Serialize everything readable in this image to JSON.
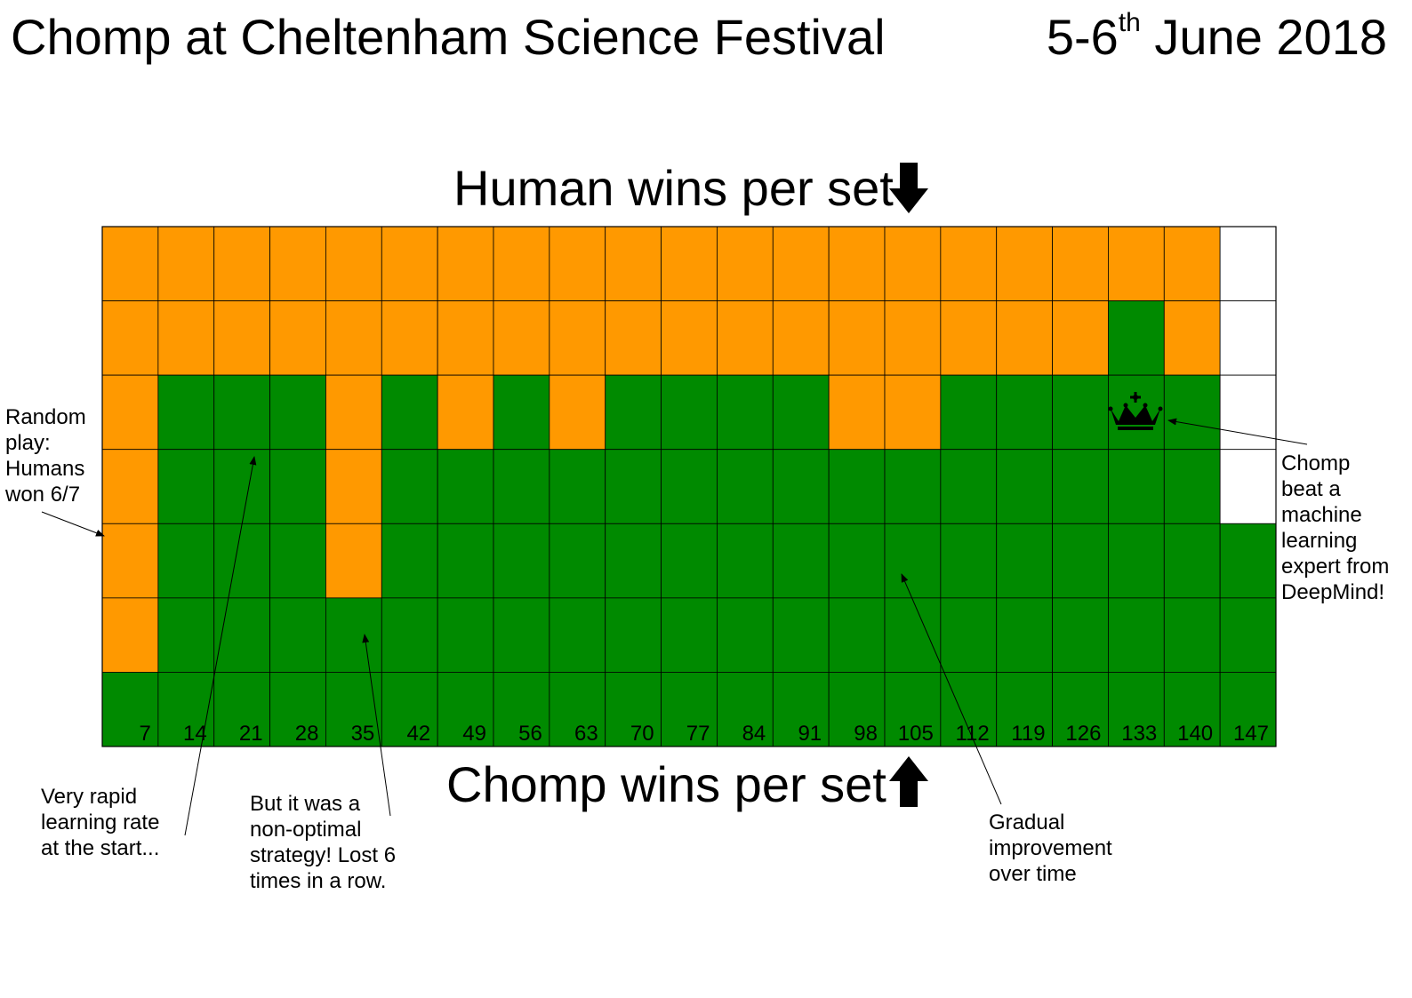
{
  "header": {
    "title": "Chomp at Cheltenham Science Festival",
    "date_prefix": "5-6",
    "date_sup": "th",
    "date_suffix": " June 2018"
  },
  "chart_data": {
    "type": "heatmap",
    "title": "Chomp at Cheltenham Science Festival",
    "top_label": "Human wins per set",
    "bottom_label": "Chomp wins per set",
    "games_per_set": 7,
    "categories": [
      "7",
      "14",
      "21",
      "28",
      "35",
      "42",
      "49",
      "56",
      "63",
      "70",
      "77",
      "84",
      "91",
      "98",
      "105",
      "112",
      "119",
      "126",
      "133",
      "140",
      "147"
    ],
    "series": [
      {
        "name": "Human wins",
        "color": "#ff9900",
        "values": [
          6,
          2,
          2,
          2,
          5,
          2,
          3,
          2,
          3,
          2,
          2,
          2,
          2,
          3,
          3,
          2,
          2,
          2,
          1,
          2,
          0
        ]
      },
      {
        "name": "Chomp wins",
        "color": "#008a00",
        "values": [
          1,
          5,
          5,
          5,
          2,
          5,
          4,
          5,
          4,
          5,
          5,
          5,
          5,
          4,
          4,
          5,
          5,
          5,
          6,
          5,
          3
        ]
      }
    ],
    "unplayed_color": "#ffffff",
    "grid_rows": 7,
    "highlight": {
      "category": "133",
      "icon": "crown-icon"
    }
  },
  "annotations": {
    "random_play": [
      "Random",
      "play:",
      "Humans",
      "won 6/7"
    ],
    "rapid_learning": [
      "Very rapid",
      "learning rate",
      "at the start..."
    ],
    "non_optimal": [
      "But it was a",
      "non-optimal",
      "strategy! Lost 6",
      "times in a row."
    ],
    "gradual": [
      "Gradual",
      "improvement",
      "over time"
    ],
    "deepmind": [
      "Chomp",
      "beat a",
      "machine",
      "learning",
      "expert from",
      "DeepMind!"
    ]
  }
}
